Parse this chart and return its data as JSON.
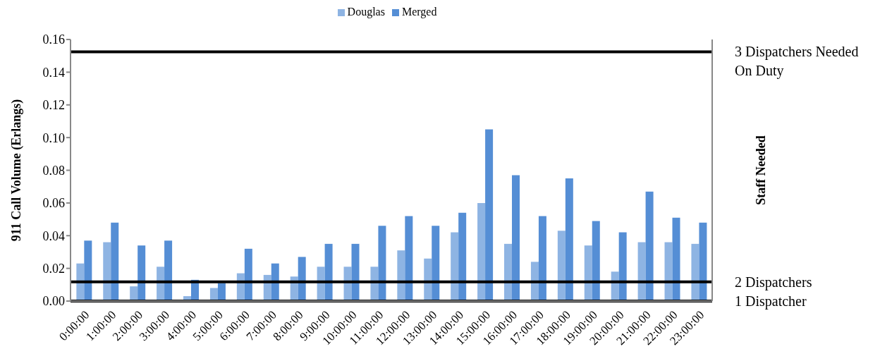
{
  "chart_data": {
    "type": "bar",
    "ylabel": "911 Call Volume (Erlangs)",
    "y2label": "Staff Needed",
    "categories": [
      "0:00:00",
      "1:00:00",
      "2:00:00",
      "3:00:00",
      "4:00:00",
      "5:00:00",
      "6:00:00",
      "7:00:00",
      "8:00:00",
      "9:00:00",
      "10:00:00",
      "11:00:00",
      "12:00:00",
      "13:00:00",
      "14:00:00",
      "15:00:00",
      "16:00:00",
      "17:00:00",
      "18:00:00",
      "19:00:00",
      "20:00:00",
      "21:00:00",
      "22:00:00",
      "23:00:00"
    ],
    "series": [
      {
        "name": "Douglas",
        "color": "#8eb4e3",
        "values": [
          0.023,
          0.036,
          0.009,
          0.021,
          0.003,
          0.008,
          0.017,
          0.016,
          0.015,
          0.021,
          0.021,
          0.021,
          0.031,
          0.026,
          0.042,
          0.06,
          0.035,
          0.024,
          0.043,
          0.034,
          0.018,
          0.036,
          0.036,
          0.035
        ]
      },
      {
        "name": "Merged",
        "color": "#558ed5",
        "values": [
          0.037,
          0.048,
          0.034,
          0.037,
          0.013,
          0.011,
          0.032,
          0.023,
          0.027,
          0.035,
          0.035,
          0.046,
          0.052,
          0.046,
          0.054,
          0.105,
          0.077,
          0.052,
          0.075,
          0.049,
          0.042,
          0.067,
          0.051,
          0.048
        ]
      }
    ],
    "ylim": [
      0,
      0.16
    ],
    "yticks": [
      {
        "value": 0,
        "label": "0.00"
      },
      {
        "value": 0.02,
        "label": "0.02"
      },
      {
        "value": 0.04,
        "label": "0.04"
      },
      {
        "value": 0.06,
        "label": "0.06"
      },
      {
        "value": 0.08,
        "label": "0.08"
      },
      {
        "value": 0.1,
        "label": "0.10"
      },
      {
        "value": 0.12,
        "label": "0.12"
      },
      {
        "value": 0.14,
        "label": "0.14"
      },
      {
        "value": 0.16,
        "label": "0.16"
      }
    ],
    "ref_lines": [
      {
        "axis": "y",
        "value": 0.1525,
        "label": "3 Dispatchers Needed On Duty",
        "color": "#000000"
      },
      {
        "axis": "y",
        "value": 0.0117,
        "label": "2 Dispatchers",
        "color": "#000000"
      },
      {
        "axis": "y",
        "value": 0,
        "label": "1 Dispatcher",
        "color": "#000000"
      }
    ],
    "legend": "top",
    "grid": false
  }
}
